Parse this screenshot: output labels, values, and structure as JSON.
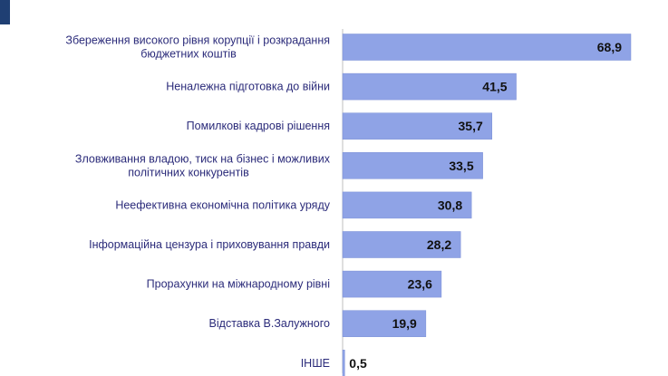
{
  "colors": {
    "bar": "#8fa3e6",
    "bar_edge": "#7b8fd6",
    "label": "#2b2b7a",
    "value": "#111111",
    "accent": "#1f3f73"
  },
  "chart_data": {
    "type": "bar",
    "orientation": "horizontal",
    "title": "",
    "xlabel": "",
    "ylabel": "",
    "xlim": [
      0,
      70
    ],
    "grid": false,
    "legend": "none",
    "categories": [
      [
        "Збереження високого рівня корупції і розкрадання",
        "бюджетних коштів"
      ],
      [
        "Неналежна підготовка до війни"
      ],
      [
        "Помилкові кадрові рішення"
      ],
      [
        "Зловживання владою, тиск на бізнес і можливих",
        "політичних конкурентів"
      ],
      [
        "Неефективна економічна політика уряду"
      ],
      [
        "Інформаційна цензура і приховування правди"
      ],
      [
        "Прорахунки на міжнародному рівні"
      ],
      [
        "Відставка В.Залужного"
      ],
      [
        "ІНШЕ"
      ]
    ],
    "values": [
      68.9,
      41.5,
      35.7,
      33.5,
      30.8,
      28.2,
      23.6,
      19.9,
      0.5
    ],
    "value_labels": [
      "68,9",
      "41,5",
      "35,7",
      "33,5",
      "30,8",
      "28,2",
      "23,6",
      "19,9",
      "0,5"
    ]
  }
}
